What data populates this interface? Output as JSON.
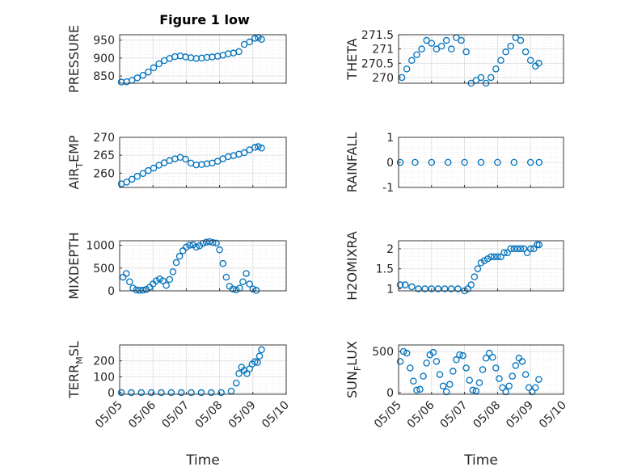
{
  "figure": {
    "title": "Figure 1 low",
    "xlabel": "Time"
  },
  "chart_data": [
    {
      "type": "scatter",
      "panel": "left-1",
      "ylabel": "PRESSURE",
      "xlim": [
        0,
        5
      ],
      "ylim": [
        830,
        965
      ],
      "yticks": [
        850,
        900,
        950
      ],
      "ytick_labels": [
        "850",
        "900",
        "950"
      ],
      "series": [
        {
          "x": [
            0.05,
            0.21,
            0.37,
            0.53,
            0.7,
            0.86,
            1.02,
            1.18,
            1.34,
            1.5,
            1.66,
            1.82,
            1.98,
            2.14,
            2.3,
            2.46,
            2.62,
            2.78,
            2.94,
            3.1,
            3.26,
            3.42,
            3.58,
            3.74,
            3.9,
            4.06,
            4.16,
            4.26
          ],
          "y": [
            833,
            834,
            838,
            845,
            852,
            861,
            873,
            884,
            893,
            899,
            904,
            906,
            903,
            901,
            899,
            900,
            902,
            903,
            905,
            908,
            912,
            914,
            918,
            938,
            945,
            955,
            957,
            952
          ]
        }
      ]
    },
    {
      "type": "scatter",
      "panel": "left-2",
      "ylabel": "AIR_TEMP",
      "ylabel_main": "AIR",
      "ylabel_sub": "T",
      "ylabel_rest": "EMP",
      "xlim": [
        0,
        5
      ],
      "ylim": [
        256,
        270
      ],
      "yticks": [
        260,
        265,
        270
      ],
      "ytick_labels": [
        "260",
        "265",
        "270"
      ],
      "series": [
        {
          "x": [
            0.05,
            0.21,
            0.37,
            0.53,
            0.7,
            0.86,
            1.02,
            1.18,
            1.34,
            1.5,
            1.66,
            1.82,
            1.98,
            2.14,
            2.3,
            2.46,
            2.62,
            2.78,
            2.94,
            3.1,
            3.26,
            3.42,
            3.58,
            3.74,
            3.9,
            4.06,
            4.16,
            4.26
          ],
          "y": [
            257,
            257.5,
            258.3,
            259.1,
            259.9,
            260.7,
            261.4,
            262.2,
            262.9,
            263.5,
            264,
            264.4,
            263.9,
            262.8,
            262.3,
            262.4,
            262.6,
            262.8,
            263.3,
            264,
            264.6,
            264.9,
            265.3,
            265.7,
            266.5,
            267.2,
            267.4,
            267
          ]
        }
      ]
    },
    {
      "type": "scatter",
      "panel": "left-3",
      "ylabel": "MIXDEPTH",
      "xlim": [
        0,
        5
      ],
      "ylim": [
        0,
        1100
      ],
      "yticks": [
        0,
        500,
        1000
      ],
      "ytick_labels": [
        "0",
        "500",
        "1000"
      ],
      "series": [
        {
          "x": [
            0.1,
            0.2,
            0.3,
            0.4,
            0.5,
            0.6,
            0.7,
            0.8,
            0.9,
            1.0,
            1.1,
            1.2,
            1.3,
            1.4,
            1.5,
            1.6,
            1.7,
            1.8,
            1.9,
            2.0,
            2.1,
            2.2,
            2.3,
            2.4,
            2.5,
            2.6,
            2.7,
            2.8,
            2.9,
            3.0,
            3.1,
            3.2,
            3.3,
            3.4,
            3.5,
            3.6,
            3.7,
            3.8,
            3.9,
            4.0,
            4.1
          ],
          "y": [
            300,
            380,
            200,
            60,
            20,
            10,
            15,
            30,
            80,
            150,
            220,
            260,
            220,
            120,
            250,
            420,
            620,
            760,
            880,
            960,
            1000,
            1010,
            960,
            990,
            1040,
            1070,
            1080,
            1060,
            1050,
            900,
            600,
            300,
            100,
            40,
            20,
            60,
            200,
            380,
            150,
            40,
            10
          ]
        }
      ]
    },
    {
      "type": "scatter",
      "panel": "left-4",
      "ylabel": "TERR_MSL",
      "ylabel_main": "TERR",
      "ylabel_sub": "M",
      "ylabel_rest": "SL",
      "xlim": [
        0,
        5
      ],
      "ylim": [
        -10,
        300
      ],
      "yticks": [
        0,
        100,
        200
      ],
      "ytick_labels": [
        "0",
        "100",
        "200"
      ],
      "xticks": [
        0,
        1,
        2,
        3,
        4,
        5
      ],
      "xtick_labels": [
        "05/05",
        "05/06",
        "05/07",
        "05/08",
        "05/09",
        "05/10"
      ],
      "series": [
        {
          "x": [
            0.05,
            0.35,
            0.65,
            0.95,
            1.25,
            1.55,
            1.85,
            2.15,
            2.45,
            2.75,
            3.05,
            3.35,
            3.5,
            3.58,
            3.66,
            3.74,
            3.82,
            3.9,
            3.98,
            4.06,
            4.14,
            4.2,
            4.26
          ],
          "y": [
            0,
            0,
            0,
            0,
            0,
            0,
            0,
            0,
            0,
            0,
            0,
            10,
            60,
            120,
            160,
            140,
            120,
            150,
            180,
            195,
            190,
            230,
            270
          ]
        }
      ]
    },
    {
      "type": "scatter",
      "panel": "right-1",
      "ylabel": "THETA",
      "xlim": [
        0,
        5
      ],
      "ylim": [
        269.8,
        271.5
      ],
      "yticks": [
        270,
        270.5,
        271,
        271.5
      ],
      "ytick_labels": [
        "270",
        "270.5",
        "271",
        "271.5"
      ],
      "series": [
        {
          "x": [
            0.1,
            0.25,
            0.4,
            0.55,
            0.7,
            0.85,
            1.0,
            1.15,
            1.3,
            1.45,
            1.6,
            1.75,
            1.9,
            2.05,
            2.2,
            2.35,
            2.5,
            2.65,
            2.8,
            2.95,
            3.1,
            3.25,
            3.4,
            3.55,
            3.7,
            3.85,
            4.0,
            4.15,
            4.25
          ],
          "y": [
            270.0,
            270.3,
            270.6,
            270.8,
            271.0,
            271.3,
            271.2,
            271.0,
            271.1,
            271.3,
            271.0,
            271.4,
            271.3,
            270.9,
            269.8,
            269.9,
            270.0,
            269.8,
            270.0,
            270.3,
            270.6,
            270.9,
            271.1,
            271.4,
            271.3,
            270.9,
            270.6,
            270.4,
            270.5
          ]
        }
      ]
    },
    {
      "type": "scatter",
      "panel": "right-2",
      "ylabel": "RAINFALL",
      "xlim": [
        0,
        5
      ],
      "ylim": [
        -1,
        1
      ],
      "yticks": [
        -1,
        0,
        1
      ],
      "ytick_labels": [
        "-1",
        "0",
        "1"
      ],
      "series": [
        {
          "x": [
            0.05,
            0.5,
            1.0,
            1.5,
            2.0,
            2.5,
            3.0,
            3.5,
            4.0,
            4.26
          ],
          "y": [
            0,
            0,
            0,
            0,
            0,
            0,
            0,
            0,
            0,
            0
          ]
        }
      ]
    },
    {
      "type": "scatter",
      "panel": "right-3",
      "ylabel": "H2OMIXRA",
      "xlim": [
        0,
        5
      ],
      "ylim": [
        0.95,
        2.2
      ],
      "yticks": [
        1,
        1.5,
        2
      ],
      "ytick_labels": [
        "1",
        "1.5",
        "2"
      ],
      "series": [
        {
          "x": [
            0.05,
            0.2,
            0.4,
            0.6,
            0.8,
            1.0,
            1.2,
            1.4,
            1.6,
            1.8,
            2.0,
            2.1,
            2.2,
            2.3,
            2.4,
            2.5,
            2.6,
            2.7,
            2.8,
            2.9,
            3.0,
            3.1,
            3.2,
            3.3,
            3.4,
            3.5,
            3.6,
            3.7,
            3.8,
            3.9,
            4.0,
            4.1,
            4.2,
            4.26
          ],
          "y": [
            1.1,
            1.1,
            1.05,
            1.0,
            1.0,
            1.0,
            1.0,
            1.0,
            1.0,
            1.0,
            0.95,
            1.0,
            1.1,
            1.3,
            1.5,
            1.65,
            1.7,
            1.75,
            1.8,
            1.8,
            1.8,
            1.8,
            1.9,
            1.9,
            2.0,
            2.0,
            2.0,
            2.0,
            2.0,
            1.9,
            2.0,
            2.0,
            2.1,
            2.1
          ]
        }
      ]
    },
    {
      "type": "scatter",
      "panel": "right-4",
      "ylabel": "SUN_FLUX",
      "ylabel_main": "SUN",
      "ylabel_sub": "F",
      "ylabel_rest": "LUX",
      "xlim": [
        0,
        5
      ],
      "ylim": [
        -20,
        580
      ],
      "yticks": [
        0,
        500
      ],
      "ytick_labels": [
        "0",
        "500"
      ],
      "xticks": [
        0,
        1,
        2,
        3,
        4,
        5
      ],
      "xtick_labels": [
        "05/05",
        "05/06",
        "05/07",
        "05/08",
        "05/09",
        "05/10"
      ],
      "series": [
        {
          "x": [
            0.05,
            0.15,
            0.25,
            0.35,
            0.45,
            0.55,
            0.65,
            0.75,
            0.85,
            0.95,
            1.05,
            1.15,
            1.25,
            1.35,
            1.45,
            1.55,
            1.65,
            1.75,
            1.85,
            1.95,
            2.05,
            2.15,
            2.25,
            2.35,
            2.45,
            2.55,
            2.65,
            2.75,
            2.85,
            2.95,
            3.05,
            3.15,
            3.25,
            3.35,
            3.45,
            3.55,
            3.65,
            3.75,
            3.85,
            3.95,
            4.05,
            4.15,
            4.25
          ],
          "y": [
            380,
            500,
            480,
            300,
            140,
            30,
            40,
            200,
            360,
            460,
            490,
            380,
            220,
            80,
            10,
            100,
            260,
            400,
            460,
            450,
            300,
            150,
            30,
            20,
            120,
            280,
            420,
            480,
            430,
            300,
            170,
            60,
            10,
            80,
            200,
            330,
            420,
            380,
            220,
            60,
            10,
            60,
            160
          ]
        }
      ]
    }
  ]
}
